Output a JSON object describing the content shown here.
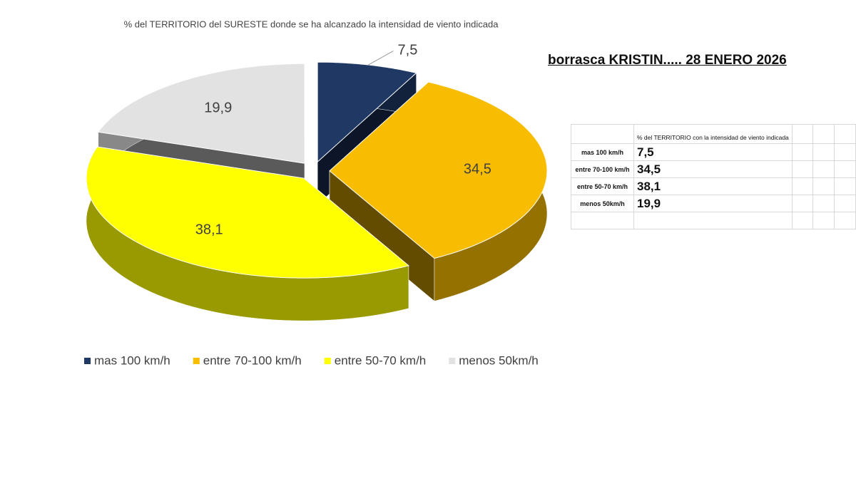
{
  "chart_data": {
    "type": "pie",
    "title": "% del TERRITORIO del SURESTE donde se ha alcanzado la intensidad de viento indicada",
    "categories": [
      "mas 100 km/h",
      "entre 70-100 km/h",
      "entre 50-70 km/h",
      "menos 50km/h"
    ],
    "values": [
      7.5,
      34.5,
      38.1,
      19.9
    ],
    "value_labels": [
      "7,5",
      "34,5",
      "38,1",
      "19,9"
    ],
    "colors": [
      "#1f3864",
      "#f8bd00",
      "#ffff00",
      "#e2e2e2"
    ],
    "legend": "bottom"
  },
  "heading": "borrasca KRISTIN..... 28 ENERO 2026",
  "table": {
    "header": "% del TERRITORIO con la intensidad de viento indicada",
    "rows": [
      [
        "mas 100 km/h",
        "7,5"
      ],
      [
        "entre 70-100 km/h",
        "34,5"
      ],
      [
        "entre 50-70 km/h",
        "38,1"
      ],
      [
        "menos 50km/h",
        "19,9"
      ]
    ]
  }
}
